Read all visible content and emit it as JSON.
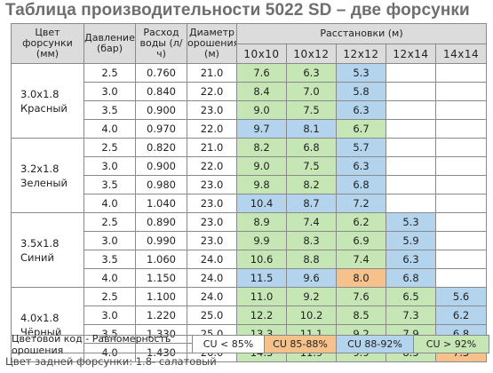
{
  "title": "Таблица производительности 5022 SD – две форсунки",
  "headers": {
    "nozzle": "Цвет форсунки (мм)",
    "pressure": "Давление (бар)",
    "flow": "Расход воды (л/ч)",
    "diameter": "Диаметр орошения (м)",
    "spacing": "Расстановки (м)",
    "spacings": [
      "10x10",
      "10x12",
      "12x12",
      "12x14",
      "14x14"
    ]
  },
  "groups": [
    {
      "nozzle_line1": "3.0x1.8",
      "nozzle_line2": "Красный",
      "rows": [
        {
          "pressure": "2.5",
          "flow": "0.760",
          "diameter": "21.0",
          "cells": [
            {
              "v": "7.6",
              "c": "green"
            },
            {
              "v": "6.3",
              "c": "green"
            },
            {
              "v": "5.3",
              "c": "blue"
            },
            {
              "v": "",
              "c": "white"
            },
            {
              "v": "",
              "c": "white"
            }
          ]
        },
        {
          "pressure": "3.0",
          "flow": "0.840",
          "diameter": "22.0",
          "cells": [
            {
              "v": "8.4",
              "c": "green"
            },
            {
              "v": "7.0",
              "c": "green"
            },
            {
              "v": "5.8",
              "c": "blue"
            },
            {
              "v": "",
              "c": "white"
            },
            {
              "v": "",
              "c": "white"
            }
          ]
        },
        {
          "pressure": "3.5",
          "flow": "0.900",
          "diameter": "23.0",
          "cells": [
            {
              "v": "9.0",
              "c": "green"
            },
            {
              "v": "7.5",
              "c": "green"
            },
            {
              "v": "6.3",
              "c": "blue"
            },
            {
              "v": "",
              "c": "white"
            },
            {
              "v": "",
              "c": "white"
            }
          ]
        },
        {
          "pressure": "4.0",
          "flow": "0.970",
          "diameter": "22.0",
          "cells": [
            {
              "v": "9.7",
              "c": "blue"
            },
            {
              "v": "8.1",
              "c": "blue"
            },
            {
              "v": "6.7",
              "c": "green"
            },
            {
              "v": "",
              "c": "white"
            },
            {
              "v": "",
              "c": "white"
            }
          ]
        }
      ]
    },
    {
      "nozzle_line1": "3.2x1.8",
      "nozzle_line2": "Зеленый",
      "rows": [
        {
          "pressure": "2.5",
          "flow": "0.820",
          "diameter": "21.0",
          "cells": [
            {
              "v": "8.2",
              "c": "green"
            },
            {
              "v": "6.8",
              "c": "green"
            },
            {
              "v": "5.7",
              "c": "blue"
            },
            {
              "v": "",
              "c": "white"
            },
            {
              "v": "",
              "c": "white"
            }
          ]
        },
        {
          "pressure": "3.0",
          "flow": "0.900",
          "diameter": "22.0",
          "cells": [
            {
              "v": "9.0",
              "c": "green"
            },
            {
              "v": "7.5",
              "c": "green"
            },
            {
              "v": "6.3",
              "c": "blue"
            },
            {
              "v": "",
              "c": "white"
            },
            {
              "v": "",
              "c": "white"
            }
          ]
        },
        {
          "pressure": "3.5",
          "flow": "0.980",
          "diameter": "23.0",
          "cells": [
            {
              "v": "9.8",
              "c": "green"
            },
            {
              "v": "8.2",
              "c": "green"
            },
            {
              "v": "6.8",
              "c": "blue"
            },
            {
              "v": "",
              "c": "white"
            },
            {
              "v": "",
              "c": "white"
            }
          ]
        },
        {
          "pressure": "4.0",
          "flow": "1.040",
          "diameter": "23.0",
          "cells": [
            {
              "v": "10.4",
              "c": "blue"
            },
            {
              "v": "8.7",
              "c": "blue"
            },
            {
              "v": "7.2",
              "c": "blue"
            },
            {
              "v": "",
              "c": "white"
            },
            {
              "v": "",
              "c": "white"
            }
          ]
        }
      ]
    },
    {
      "nozzle_line1": "3.5x1.8",
      "nozzle_line2": "Синий",
      "rows": [
        {
          "pressure": "2.5",
          "flow": "0.890",
          "diameter": "23.0",
          "cells": [
            {
              "v": "8.9",
              "c": "green"
            },
            {
              "v": "7.4",
              "c": "green"
            },
            {
              "v": "6.2",
              "c": "green"
            },
            {
              "v": "5.3",
              "c": "blue"
            },
            {
              "v": "",
              "c": "white"
            }
          ]
        },
        {
          "pressure": "3.0",
          "flow": "0.990",
          "diameter": "23.0",
          "cells": [
            {
              "v": "9.9",
              "c": "green"
            },
            {
              "v": "8.3",
              "c": "green"
            },
            {
              "v": "6.9",
              "c": "green"
            },
            {
              "v": "5.9",
              "c": "blue"
            },
            {
              "v": "",
              "c": "white"
            }
          ]
        },
        {
          "pressure": "3.5",
          "flow": "1.060",
          "diameter": "24.0",
          "cells": [
            {
              "v": "10.6",
              "c": "green"
            },
            {
              "v": "8.8",
              "c": "green"
            },
            {
              "v": "7.4",
              "c": "green"
            },
            {
              "v": "6.3",
              "c": "blue"
            },
            {
              "v": "",
              "c": "white"
            }
          ]
        },
        {
          "pressure": "4.0",
          "flow": "1.150",
          "diameter": "24.0",
          "cells": [
            {
              "v": "11.5",
              "c": "blue"
            },
            {
              "v": "9.6",
              "c": "blue"
            },
            {
              "v": "8.0",
              "c": "orange"
            },
            {
              "v": "6.8",
              "c": "blue"
            },
            {
              "v": "",
              "c": "white"
            }
          ]
        }
      ]
    },
    {
      "nozzle_line1": "4.0x1.8",
      "nozzle_line2": "Чёрный",
      "rows": [
        {
          "pressure": "2.5",
          "flow": "1.100",
          "diameter": "24.0",
          "cells": [
            {
              "v": "11.0",
              "c": "green"
            },
            {
              "v": "9.2",
              "c": "green"
            },
            {
              "v": "7.6",
              "c": "green"
            },
            {
              "v": "6.5",
              "c": "green"
            },
            {
              "v": "5.6",
              "c": "blue"
            }
          ]
        },
        {
          "pressure": "3.0",
          "flow": "1.220",
          "diameter": "25.0",
          "cells": [
            {
              "v": "12.2",
              "c": "green"
            },
            {
              "v": "10.2",
              "c": "green"
            },
            {
              "v": "8.5",
              "c": "green"
            },
            {
              "v": "7.3",
              "c": "green"
            },
            {
              "v": "6.2",
              "c": "blue"
            }
          ]
        },
        {
          "pressure": "3.5",
          "flow": "1.330",
          "diameter": "25.0",
          "cells": [
            {
              "v": "13.3",
              "c": "green"
            },
            {
              "v": "11.1",
              "c": "green"
            },
            {
              "v": "9.2",
              "c": "green"
            },
            {
              "v": "7.9",
              "c": "green"
            },
            {
              "v": "6.8",
              "c": "blue"
            }
          ]
        },
        {
          "pressure": "4.0",
          "flow": "1.430",
          "diameter": "26.0",
          "cells": [
            {
              "v": "14.3",
              "c": "green"
            },
            {
              "v": "11.9",
              "c": "green"
            },
            {
              "v": "9.9",
              "c": "green"
            },
            {
              "v": "8.5",
              "c": "green"
            },
            {
              "v": "7.3",
              "c": "orange"
            }
          ]
        }
      ]
    }
  ],
  "legend": {
    "label": "Цветовой код - Равномерность орошения",
    "items": [
      {
        "text": "CU < 85%",
        "color": "#ffffff"
      },
      {
        "text": "CU 85-88%",
        "color": "#f7c18c"
      },
      {
        "text": "CU 88-92%",
        "color": "#b4d3ec"
      },
      {
        "text": "CU > 92%",
        "color": "#c7e6b6"
      }
    ]
  },
  "footnote": "Цвет задней форсунки: 1.8- салатовый"
}
